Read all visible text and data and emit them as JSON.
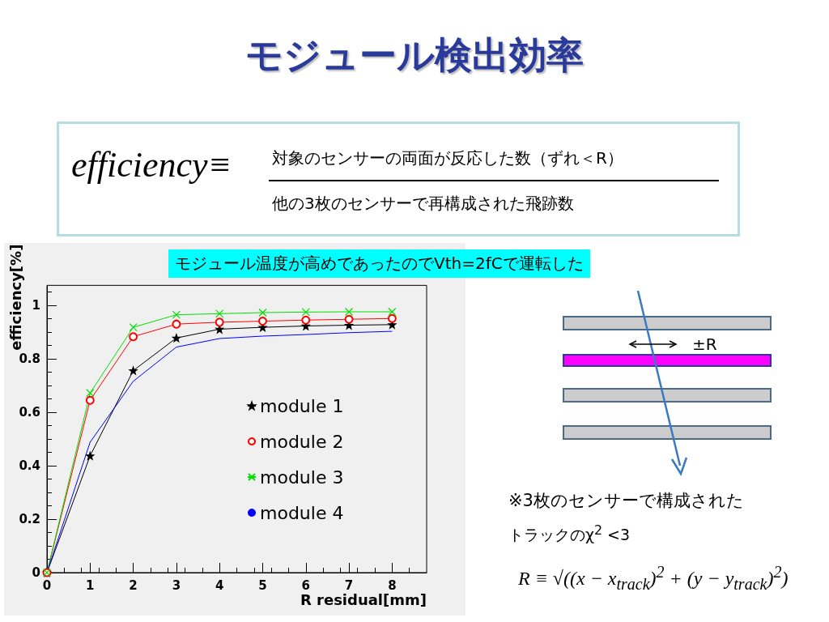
{
  "chart_data": {
    "type": "line",
    "title": "モジュール検出効率",
    "xlabel": "R residual[mm]",
    "ylabel": "efficiency[%]",
    "x": [
      0,
      1,
      2,
      3,
      4,
      5,
      6,
      7,
      8
    ],
    "series": [
      {
        "name": "module 1",
        "color": "#000000",
        "marker": "star",
        "values": [
          0,
          0.437,
          0.756,
          0.878,
          0.911,
          0.918,
          0.923,
          0.926,
          0.928
        ]
      },
      {
        "name": "module 2",
        "color": "#ff0000",
        "marker": "circle",
        "values": [
          0,
          0.645,
          0.883,
          0.93,
          0.937,
          0.941,
          0.945,
          0.948,
          0.951
        ]
      },
      {
        "name": "module 3",
        "color": "#00e000",
        "marker": "cross",
        "values": [
          0,
          0.672,
          0.918,
          0.965,
          0.969,
          0.973,
          0.975,
          0.976,
          0.976
        ]
      },
      {
        "name": "module 4",
        "color": "#0000ff",
        "marker": "none",
        "values": [
          0,
          0.488,
          0.716,
          0.844,
          0.876,
          0.885,
          0.891,
          0.898,
          0.903
        ]
      }
    ],
    "xlim": [
      0,
      8.8
    ],
    "xticks": [
      0,
      1,
      2,
      3,
      4,
      5,
      6,
      7,
      8
    ],
    "ylim": [
      0,
      1.075
    ],
    "yticks": [
      0,
      0.2,
      0.4,
      0.6,
      0.8,
      1
    ],
    "grid": false,
    "legend": "bottom right",
    "annotations": [
      "efficiency≡",
      "対象のセンサーの両面が反応した数（ずれ＜R）",
      "他の3枚のセンサーで再構成された飛跡数",
      "モジュール温度が高めであったのでVth=2fCで運転した",
      "±R",
      "※3枚のセンサーで構成された",
      "トラックのχ$^{2}$ <3",
      "R ≡ √((x − x$_{track}$)$^{2}$ + (y − y$_{track}$)$^{2}$)"
    ]
  }
}
